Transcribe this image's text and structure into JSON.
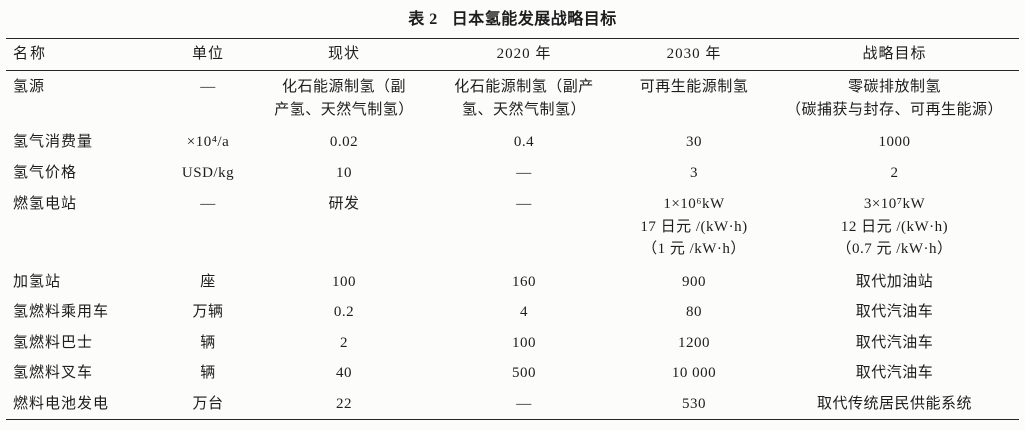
{
  "caption": {
    "label": "表 2",
    "title": "日本氢能发展战略目标"
  },
  "colors": {
    "background": "#fcfcfb",
    "text": "#1d1d1d",
    "rule": "#262626"
  },
  "table": {
    "headers": [
      "名称",
      "单位",
      "现状",
      "2020 年",
      "2030 年",
      "战略目标"
    ],
    "rows": [
      [
        "氢源",
        "—",
        "化石能源制氢（副\n产氢、天然气制氢）",
        "化石能源制氢（副产\n氢、天然气制氢）",
        "可再生能源制氢",
        "零碳排放制氢\n（碳捕获与封存、可再生能源）"
      ],
      [
        "氢气消费量",
        "×10⁴/a",
        "0.02",
        "0.4",
        "30",
        "1000"
      ],
      [
        "氢气价格",
        "USD/kg",
        "10",
        "—",
        "3",
        "2"
      ],
      [
        "燃氢电站",
        "—",
        "研发",
        "—",
        "1×10⁶kW\n17 日元 /(kW·h)\n（1 元 /kW·h）",
        "3×10⁷kW\n12 日元 /(kW·h)\n（0.7 元 /kW·h）"
      ],
      [
        "加氢站",
        "座",
        "100",
        "160",
        "900",
        "取代加油站"
      ],
      [
        "氢燃料乘用车",
        "万辆",
        "0.2",
        "4",
        "80",
        "取代汽油车"
      ],
      [
        "氢燃料巴士",
        "辆",
        "2",
        "100",
        "1200",
        "取代汽油车"
      ],
      [
        "氢燃料叉车",
        "辆",
        "40",
        "500",
        "10 000",
        "取代汽油车"
      ],
      [
        "燃料电池发电",
        "万台",
        "22",
        "—",
        "530",
        "取代传统居民供能系统"
      ]
    ]
  }
}
